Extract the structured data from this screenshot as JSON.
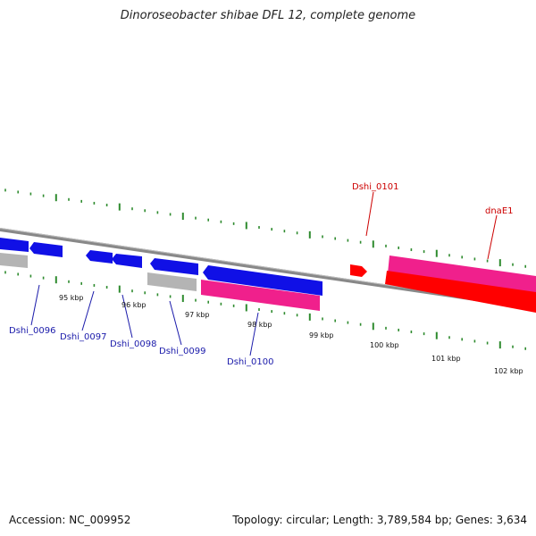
{
  "title": "Dinoroseobacter shibae DFL 12, complete genome",
  "footer": {
    "accession": "Accession: NC_009952",
    "summary": "Topology: circular; Length: 3,789,584 bp; Genes: 3,634"
  },
  "colors": {
    "backbone": "#888888",
    "tick": "#2e8b2e",
    "blue_gene": "#1010e6",
    "gray_gene": "#b4b4b4",
    "pink_gene": "#f0208c",
    "red_gene": "#ff0000",
    "blue_label": "#1a1aaa",
    "red_label": "#cc0000"
  },
  "scale": {
    "labels": [
      "95 kbp",
      "96 kbp",
      "97 kbp",
      "98 kbp",
      "99 kbp",
      "100 kbp",
      "101 kbp",
      "102 kbp"
    ]
  },
  "gene_labels": [
    {
      "text": "Dshi_0096",
      "strand": "minus"
    },
    {
      "text": "Dshi_0097",
      "strand": "minus"
    },
    {
      "text": "Dshi_0098",
      "strand": "minus"
    },
    {
      "text": "Dshi_0099",
      "strand": "minus"
    },
    {
      "text": "Dshi_0100",
      "strand": "minus"
    },
    {
      "text": "Dshi_0101",
      "strand": "plus"
    },
    {
      "text": "dnaE1",
      "strand": "plus"
    }
  ]
}
